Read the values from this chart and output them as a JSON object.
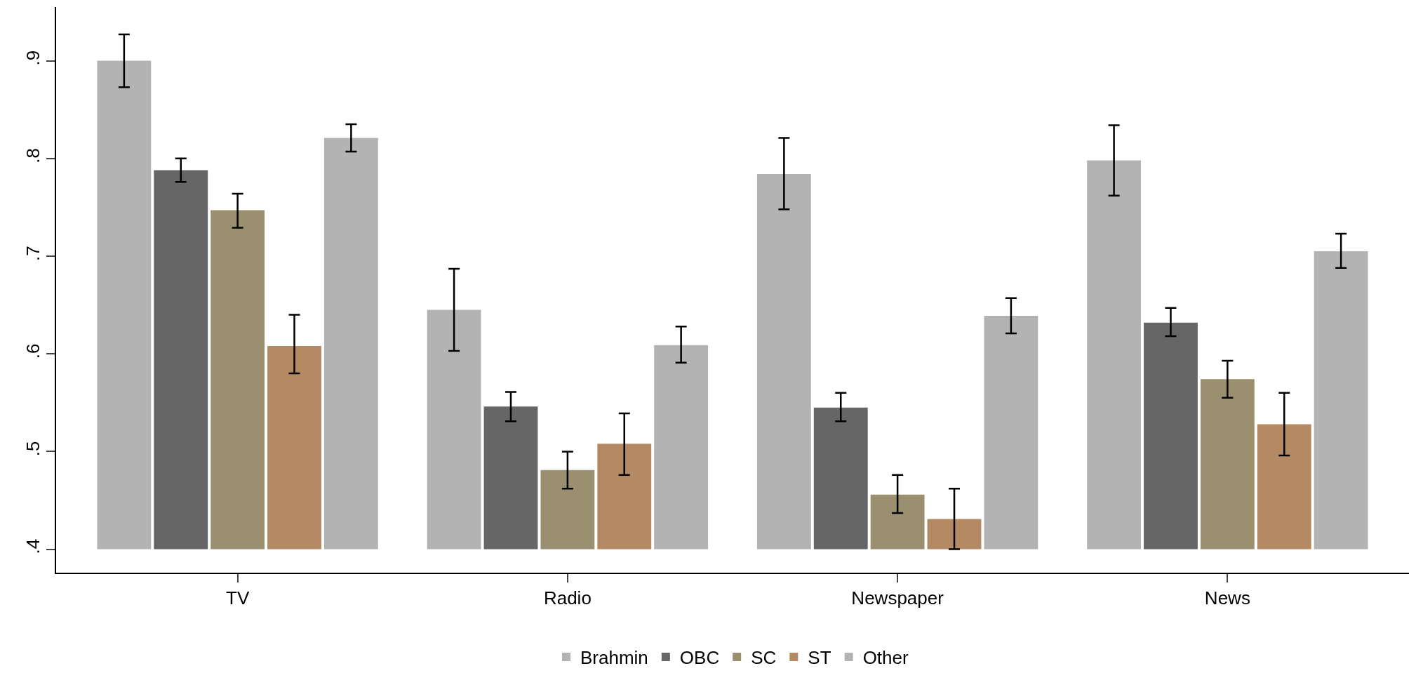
{
  "chart_data": {
    "type": "bar",
    "categories": [
      "TV",
      "Radio",
      "Newspaper",
      "News"
    ],
    "series": [
      {
        "name": "Brahmin",
        "color": "#b3b3b3",
        "base": [
          0.4,
          0.4,
          0.4,
          0.4
        ],
        "values": [
          0.5,
          0.245,
          0.384,
          0.398
        ],
        "errors": [
          [
            0.873,
            0.927
          ],
          [
            0.603,
            0.687
          ],
          [
            0.748,
            0.821
          ],
          [
            0.762,
            0.834
          ]
        ]
      },
      {
        "name": "OBC",
        "color": "#666666",
        "base": [
          0.4,
          0.4,
          0.4,
          0.4
        ],
        "values": [
          0.388,
          0.146,
          0.145,
          0.232
        ],
        "errors": [
          [
            0.776,
            0.8
          ],
          [
            0.531,
            0.561
          ],
          [
            0.531,
            0.56
          ],
          [
            0.618,
            0.647
          ]
        ]
      },
      {
        "name": "SC",
        "color": "#9a8f6f",
        "base": [
          0.4,
          0.4,
          0.4,
          0.4
        ],
        "values": [
          0.347,
          0.081,
          0.056,
          0.174
        ],
        "errors": [
          [
            0.729,
            0.764
          ],
          [
            0.462,
            0.5
          ],
          [
            0.437,
            0.476
          ],
          [
            0.555,
            0.593
          ]
        ]
      },
      {
        "name": "ST",
        "color": "#b38a63",
        "base": [
          0.4,
          0.4,
          0.4,
          0.4
        ],
        "values": [
          0.208,
          0.108,
          0.031,
          0.128
        ],
        "errors": [
          [
            0.58,
            0.64
          ],
          [
            0.476,
            0.539
          ],
          [
            0.4,
            0.462
          ],
          [
            0.496,
            0.56
          ]
        ]
      },
      {
        "name": "Other",
        "color": "#b3b3b3",
        "base": [
          0.4,
          0.4,
          0.4,
          0.4
        ],
        "values": [
          0.421,
          0.209,
          0.239,
          0.305
        ],
        "errors": [
          [
            0.807,
            0.835
          ],
          [
            0.591,
            0.628
          ],
          [
            0.621,
            0.657
          ],
          [
            0.688,
            0.723
          ]
        ]
      }
    ],
    "ylim": [
      0.376,
      0.955
    ],
    "yticks": [
      {
        "value": 0.4,
        "label": ".4"
      },
      {
        "value": 0.5,
        "label": ".5"
      },
      {
        "value": 0.6,
        "label": ".6"
      },
      {
        "value": 0.7,
        "label": ".7"
      },
      {
        "value": 0.8,
        "label": ".8"
      },
      {
        "value": 0.9,
        "label": ".9"
      }
    ],
    "grid": false,
    "legend": "bottom"
  }
}
